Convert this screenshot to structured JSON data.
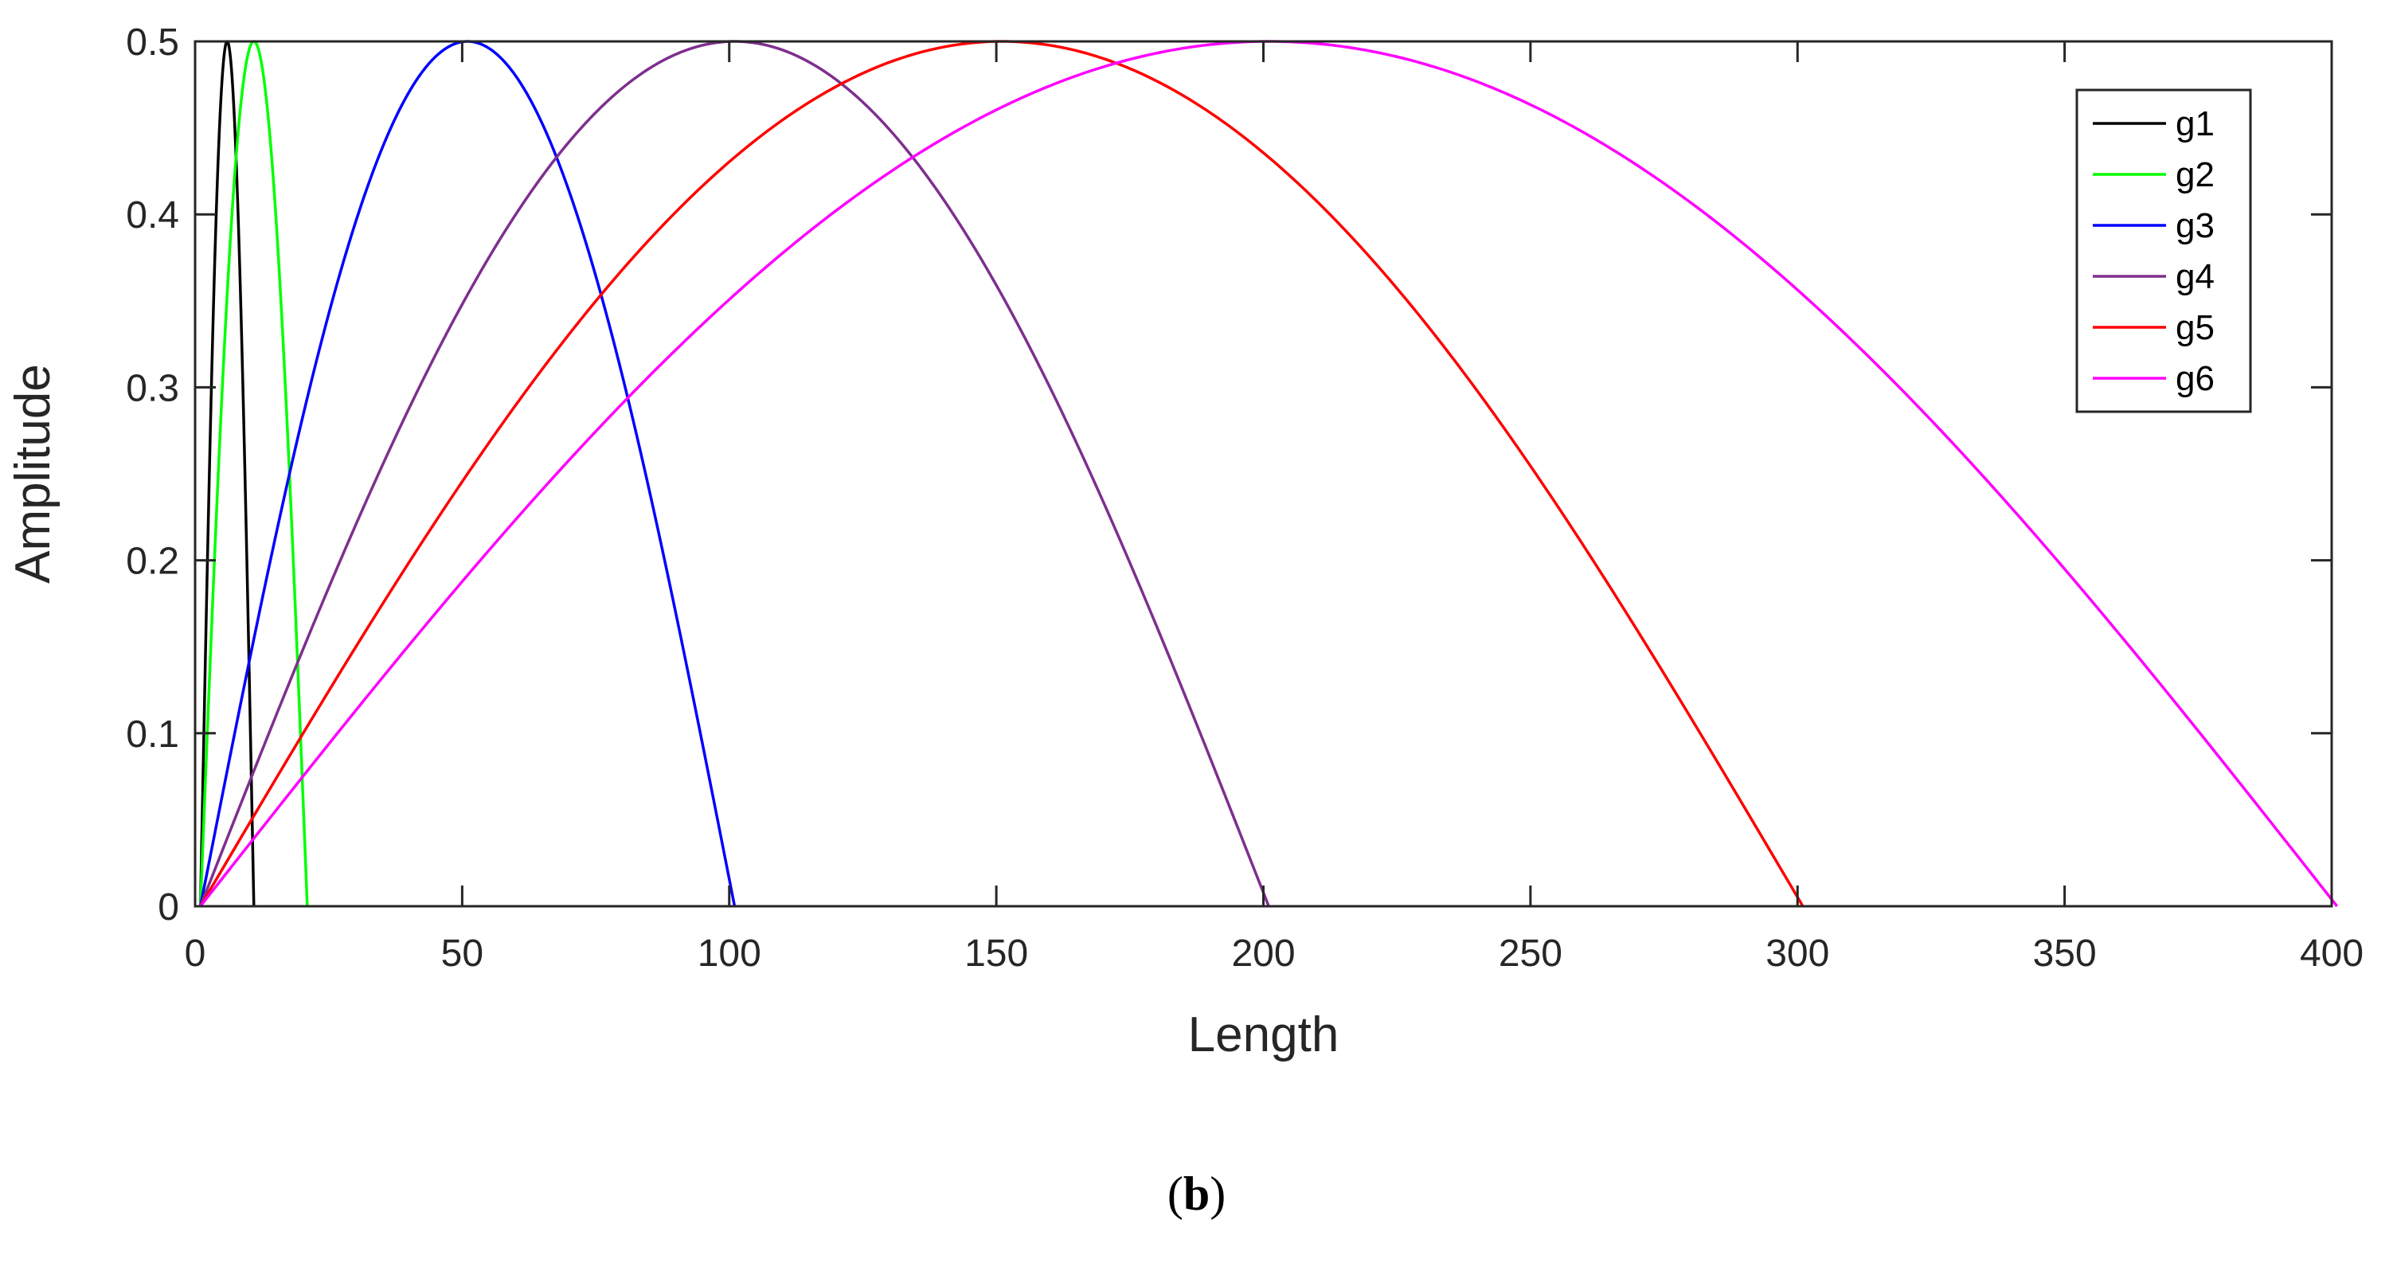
{
  "chart_data": {
    "type": "line",
    "title": "",
    "xlabel": "Length",
    "ylabel": "Amplitude",
    "xlim": [
      0,
      400
    ],
    "ylim": [
      0,
      0.5
    ],
    "xticks": [
      0,
      50,
      100,
      150,
      200,
      250,
      300,
      350,
      400
    ],
    "xtick_labels": [
      "0",
      "50",
      "100",
      "150",
      "200",
      "250",
      "300",
      "350",
      "400"
    ],
    "yticks": [
      0,
      0.1,
      0.2,
      0.3,
      0.4,
      0.5
    ],
    "ytick_labels": [
      "0",
      "0.1",
      "0.2",
      "0.3",
      "0.4",
      "0.5"
    ],
    "grid": false,
    "legend_position": "top-right",
    "series": [
      {
        "name": "g1",
        "color": "#000000",
        "x": [
          1,
          6,
          11
        ],
        "y": [
          0,
          0.5,
          0
        ]
      },
      {
        "name": "g2",
        "color": "#00ff00",
        "x": [
          1,
          11,
          21
        ],
        "y": [
          0,
          0.5,
          0
        ]
      },
      {
        "name": "g3",
        "color": "#0000ff",
        "x": [
          1,
          51,
          101
        ],
        "y": [
          0,
          0.5,
          0
        ]
      },
      {
        "name": "g4",
        "color": "#7e2f8e",
        "x": [
          1,
          101,
          201
        ],
        "y": [
          0,
          0.5,
          0
        ]
      },
      {
        "name": "g5",
        "color": "#ff0000",
        "x": [
          1,
          151,
          301
        ],
        "y": [
          0,
          0.5,
          0
        ]
      },
      {
        "name": "g6",
        "color": "#ff00ff",
        "x": [
          1,
          201,
          401
        ],
        "y": [
          0,
          0.5,
          0
        ]
      }
    ],
    "shape": "half-sine"
  },
  "caption": {
    "open": "(",
    "letter": "b",
    "close": ")"
  }
}
